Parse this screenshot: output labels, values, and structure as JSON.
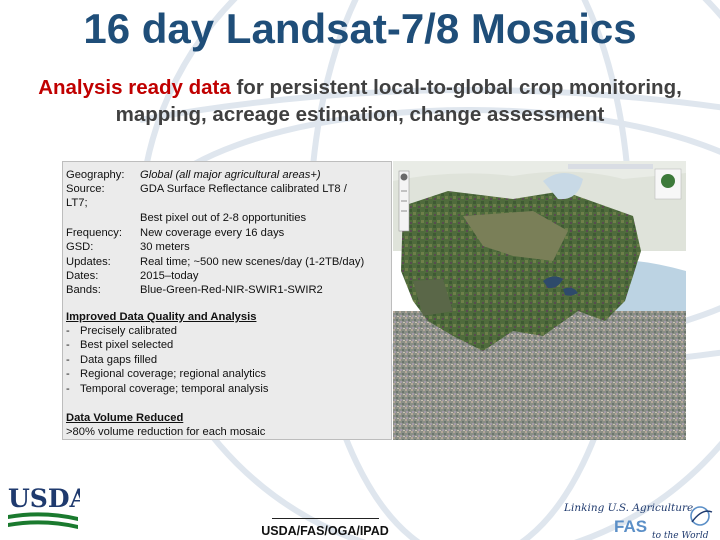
{
  "slide": {
    "title": "16 day Landsat-7/8 Mosaics",
    "subtitle_em": "Analysis ready data",
    "subtitle_rest": " for persistent local-to-global crop monitoring, mapping, acreage estimation, change assessment"
  },
  "info": {
    "geography_label": "Geography:",
    "geography_value": "Global (all major agricultural areas+)",
    "source_label": "Source:",
    "source_value": "GDA Surface Reflectance calibrated LT8 /",
    "source_cont": "LT7;",
    "source_extra": "Best pixel out of 2-8 opportunities",
    "frequency_label": "Frequency:",
    "frequency_value": "New coverage every 16 days",
    "gsd_label": "GSD:",
    "gsd_value": "30 meters",
    "updates_label": "Updates:",
    "updates_value": "Real time; ~500 new scenes/day (1-2TB/day)",
    "dates_label": "Dates:",
    "dates_value": "2015–today",
    "bands_label": "Bands:",
    "bands_value": "Blue-Green-Red-NIR-SWIR1-SWIR2",
    "quality_heading": "Improved Data Quality and Analysis",
    "quality_items": [
      "Precisely calibrated",
      "Best pixel selected",
      "Data gaps filled",
      "Regional coverage; regional analytics",
      "Temporal coverage; temporal analysis"
    ],
    "dash": "-",
    "volume_heading": "Data Volume Reduced",
    "volume_text": ">80% volume reduction for each mosaic"
  },
  "logos": {
    "usda_text": "USDA",
    "fas_tagline": "Linking U.S. Agriculture",
    "fas_text": "FAS",
    "fas_tail": "to the World"
  },
  "footer": {
    "text": "USDA/FAS/OGA/IPAD"
  },
  "colors": {
    "title": "#1f4e79",
    "emphasis": "#c00000",
    "usda_green": "#1a7a2e",
    "usda_blue": "#1f3a6e"
  }
}
